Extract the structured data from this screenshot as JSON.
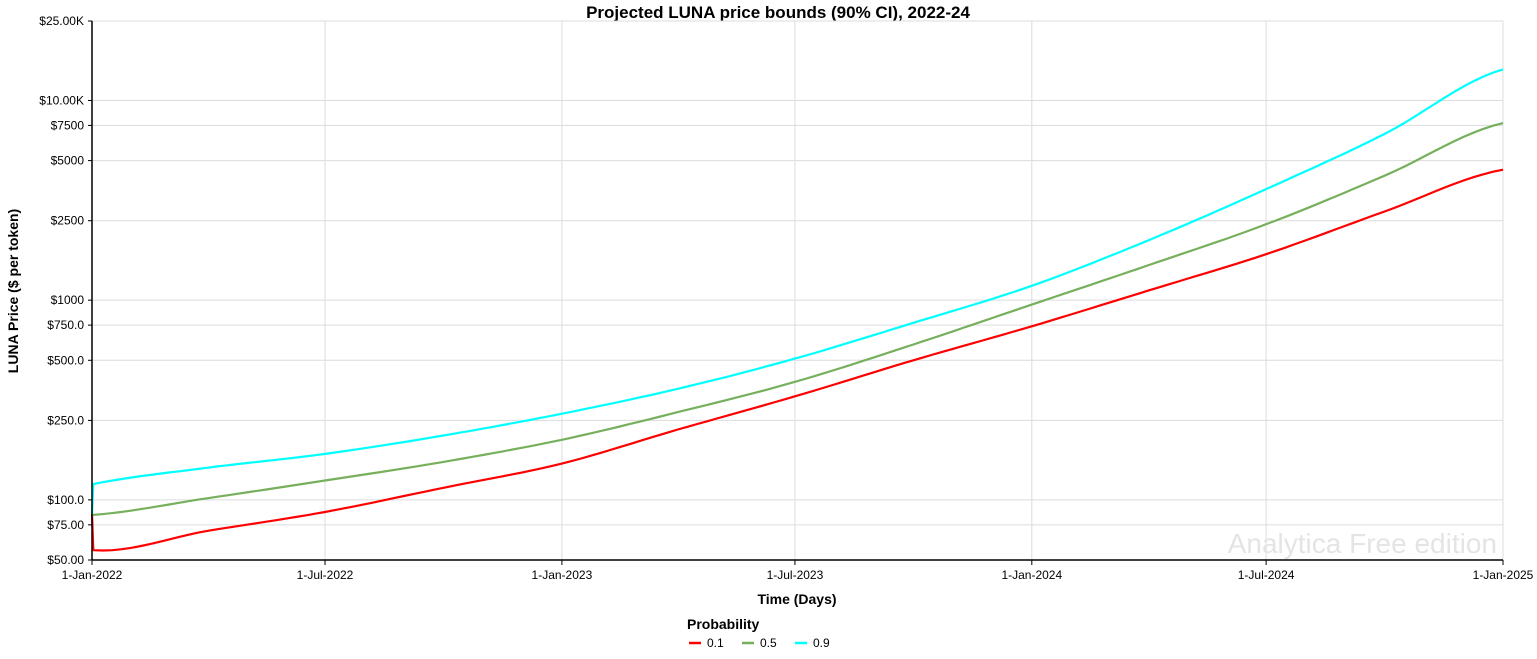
{
  "chart_data": {
    "type": "line",
    "title": "Projected LUNA price bounds (90% CI), 2022-24",
    "xlabel": "Time (Days)",
    "ylabel": "LUNA Price ($ per token)",
    "yscale": "log",
    "ylim": [
      50,
      25000
    ],
    "xlim": [
      "2022-01-01",
      "2025-01-01"
    ],
    "x_ticks": [
      "1-Jan-2022",
      "1-Jul-2022",
      "1-Jan-2023",
      "1-Jul-2023",
      "1-Jan-2024",
      "1-Jul-2024",
      "1-Jan-2025"
    ],
    "x_tick_dates": [
      "2022-01-01",
      "2022-07-01",
      "2023-01-01",
      "2023-07-01",
      "2024-01-01",
      "2024-07-01",
      "2025-01-01"
    ],
    "y_ticks": [
      {
        "value": 50,
        "label": "$50.00"
      },
      {
        "value": 75,
        "label": "$75.00"
      },
      {
        "value": 100,
        "label": "$100.0"
      },
      {
        "value": 250,
        "label": "$250.0"
      },
      {
        "value": 500,
        "label": "$500.0"
      },
      {
        "value": 750,
        "label": "$750.0"
      },
      {
        "value": 1000,
        "label": "$1000"
      },
      {
        "value": 2500,
        "label": "$2500"
      },
      {
        "value": 5000,
        "label": "$5000"
      },
      {
        "value": 7500,
        "label": "$7500"
      },
      {
        "value": 10000,
        "label": "$10.00K"
      },
      {
        "value": 25000,
        "label": "$25.00K"
      }
    ],
    "grid": true,
    "legend": {
      "title": "Probability",
      "position": "bottom-center"
    },
    "watermark": "Analytica Free edition",
    "series": [
      {
        "name": "0.1",
        "color": "#ff0000",
        "x": [
          "2022-01-01",
          "2022-01-02",
          "2022-04-01",
          "2022-07-01",
          "2022-10-01",
          "2023-01-01",
          "2023-04-01",
          "2023-07-01",
          "2023-10-01",
          "2024-01-01",
          "2024-04-01",
          "2024-07-01",
          "2024-10-01",
          "2025-01-01"
        ],
        "y": [
          85,
          56,
          70,
          87,
          115,
          152,
          225,
          330,
          500,
          740,
          1120,
          1700,
          2780,
          4500
        ]
      },
      {
        "name": "0.5",
        "color": "#77b05d",
        "x": [
          "2022-01-01",
          "2022-04-01",
          "2022-07-01",
          "2022-10-01",
          "2023-01-01",
          "2023-04-01",
          "2023-07-01",
          "2023-10-01",
          "2024-01-01",
          "2024-04-01",
          "2024-07-01",
          "2024-10-01",
          "2025-01-01"
        ],
        "y": [
          84,
          102,
          125,
          155,
          200,
          275,
          390,
          600,
          950,
          1500,
          2400,
          4200,
          7700
        ]
      },
      {
        "name": "0.9",
        "color": "#00ffff",
        "x": [
          "2022-01-01",
          "2022-01-02",
          "2022-04-01",
          "2022-07-01",
          "2022-10-01",
          "2023-01-01",
          "2023-04-01",
          "2023-07-01",
          "2023-10-01",
          "2024-01-01",
          "2024-04-01",
          "2024-07-01",
          "2024-10-01",
          "2025-01-01"
        ],
        "y": [
          85,
          120,
          145,
          170,
          210,
          270,
          360,
          510,
          770,
          1180,
          2000,
          3600,
          6800,
          14300
        ]
      }
    ]
  }
}
